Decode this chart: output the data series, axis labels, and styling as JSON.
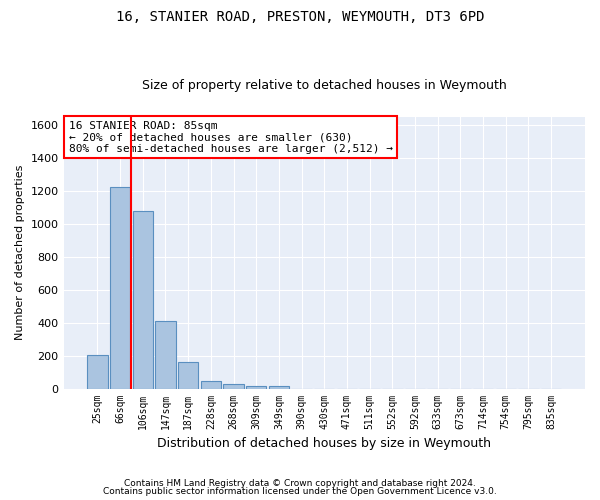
{
  "title1": "16, STANIER ROAD, PRESTON, WEYMOUTH, DT3 6PD",
  "title2": "Size of property relative to detached houses in Weymouth",
  "xlabel": "Distribution of detached houses by size in Weymouth",
  "ylabel": "Number of detached properties",
  "bar_values": [
    205,
    1225,
    1075,
    410,
    163,
    45,
    27,
    18,
    15,
    0,
    0,
    0,
    0,
    0,
    0,
    0,
    0,
    0,
    0,
    0,
    0
  ],
  "categories": [
    "25sqm",
    "66sqm",
    "106sqm",
    "147sqm",
    "187sqm",
    "228sqm",
    "268sqm",
    "309sqm",
    "349sqm",
    "390sqm",
    "430sqm",
    "471sqm",
    "511sqm",
    "552sqm",
    "592sqm",
    "633sqm",
    "673sqm",
    "714sqm",
    "754sqm",
    "795sqm",
    "835sqm"
  ],
  "bar_color": "#aac4e0",
  "bar_edge_color": "#5a8fc0",
  "red_line_x": 1.5,
  "annotation_line1": "16 STANIER ROAD: 85sqm",
  "annotation_line2": "← 20% of detached houses are smaller (630)",
  "annotation_line3": "80% of semi-detached houses are larger (2,512) →",
  "ylim": [
    0,
    1650
  ],
  "yticks": [
    0,
    200,
    400,
    600,
    800,
    1000,
    1200,
    1400,
    1600
  ],
  "footer1": "Contains HM Land Registry data © Crown copyright and database right 2024.",
  "footer2": "Contains public sector information licensed under the Open Government Licence v3.0.",
  "background_color": "#e8eef8",
  "grid_color": "#ffffff",
  "title_fontsize": 10,
  "subtitle_fontsize": 9,
  "ann_fontsize": 8
}
